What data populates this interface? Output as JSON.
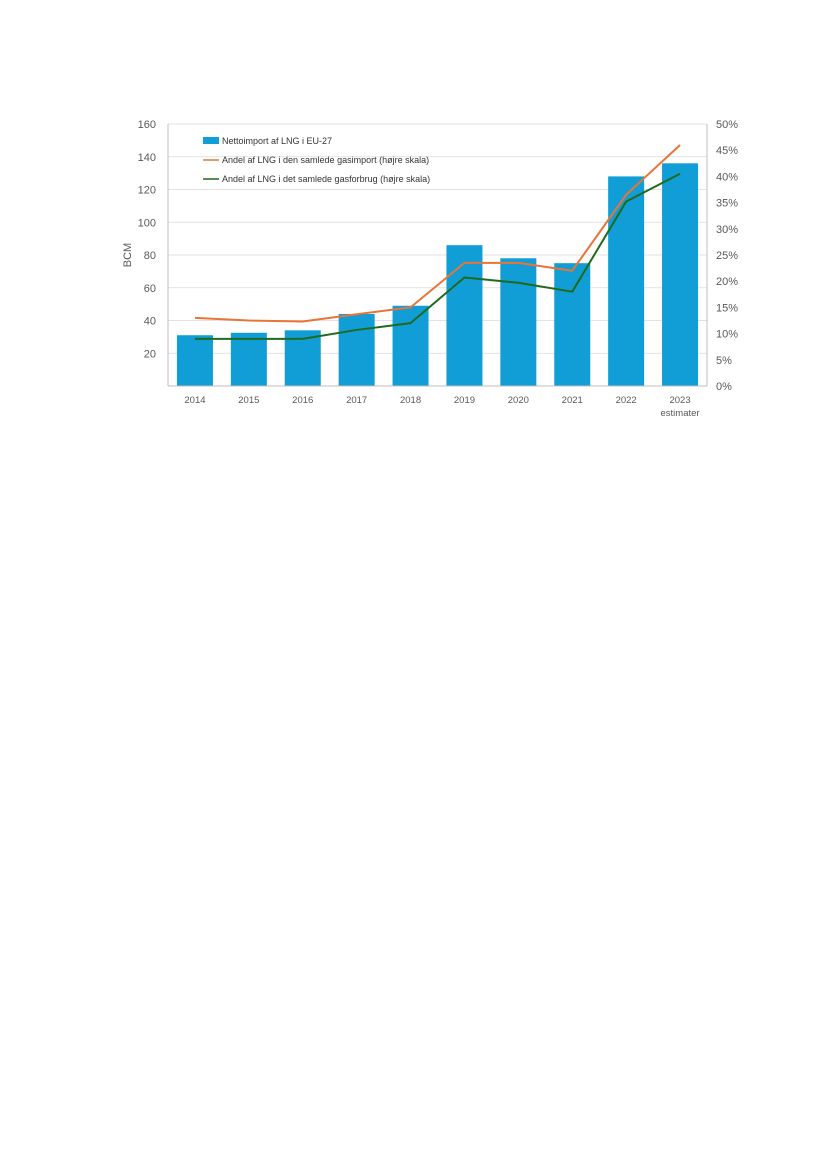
{
  "chart_data": {
    "type": "bar+line",
    "categories": [
      "2014",
      "2015",
      "2016",
      "2017",
      "2018",
      "2019",
      "2020",
      "2021",
      "2022",
      "2023"
    ],
    "category_sublabels": [
      "",
      "",
      "",
      "",
      "",
      "",
      "",
      "",
      "",
      "estimater"
    ],
    "ylabel": "BCM",
    "ylim": [
      0,
      160
    ],
    "y_ticks": [
      20,
      40,
      60,
      80,
      100,
      120,
      140,
      160
    ],
    "y2lim": [
      0,
      0.5
    ],
    "y2_ticks": [
      "0%",
      "5%",
      "10%",
      "15%",
      "20%",
      "25%",
      "30%",
      "35%",
      "40%",
      "45%",
      "50%"
    ],
    "grid": true,
    "legend_position": "top-left",
    "series": [
      {
        "name": "Nettoimport af LNG i EU-27",
        "kind": "bar",
        "axis": "left",
        "color": "#119DD5",
        "values": [
          31,
          32.5,
          34,
          44,
          49,
          86,
          78,
          75,
          128,
          136
        ]
      },
      {
        "name": "Andel af LNG i den samlede gasimport (højre skala)",
        "kind": "line",
        "axis": "right",
        "color": "#E87437",
        "values": [
          0.13,
          0.125,
          0.123,
          0.137,
          0.15,
          0.235,
          0.235,
          0.22,
          0.365,
          0.46
        ]
      },
      {
        "name": "Andel af LNG i det samlede gasforbrug (højre skala)",
        "kind": "line",
        "axis": "right",
        "color": "#1E6B1E",
        "values": [
          0.09,
          0.09,
          0.09,
          0.107,
          0.12,
          0.207,
          0.197,
          0.18,
          0.352,
          0.405
        ]
      }
    ]
  }
}
